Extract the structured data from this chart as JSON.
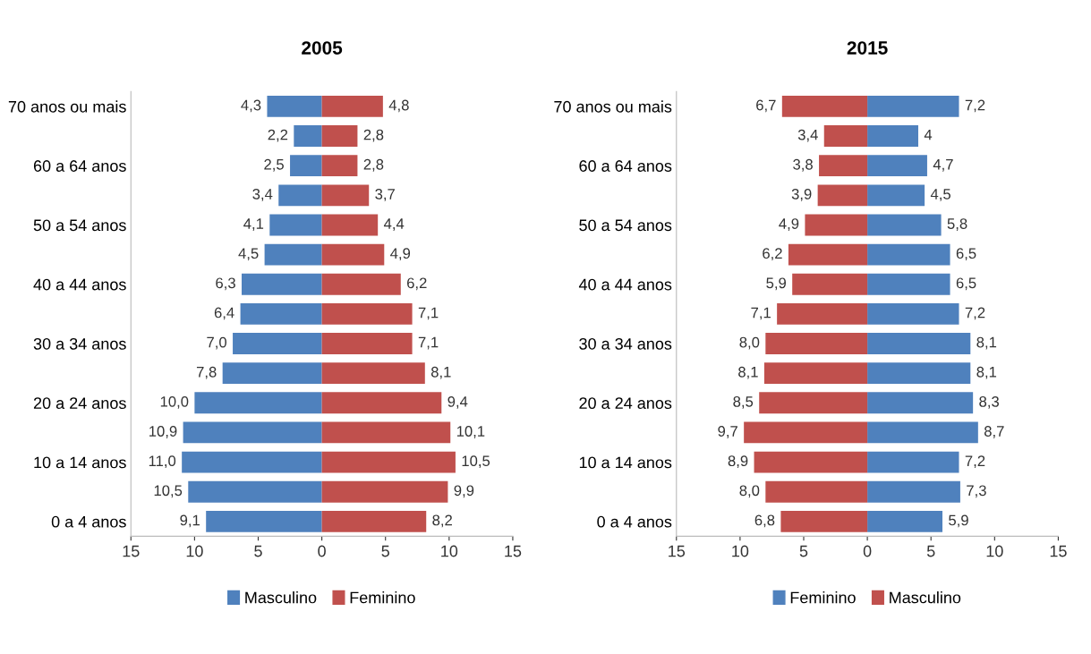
{
  "chart_data": [
    {
      "type": "bar",
      "title": "2005",
      "orientation": "horizontal",
      "categories": [
        "70 anos ou mais",
        null,
        "60 a 64 anos",
        null,
        "50 a 54 anos",
        null,
        "40 a 44 anos",
        null,
        "30 a 34 anos",
        null,
        "20 a 24 anos",
        null,
        "10 a 14 anos",
        null,
        "0 a 4 anos"
      ],
      "series": [
        {
          "name": "Masculino",
          "color": "#4f81bd",
          "values": [
            4.3,
            2.2,
            2.5,
            3.4,
            4.1,
            4.5,
            6.3,
            6.4,
            7.0,
            7.8,
            10.0,
            10.9,
            11.0,
            10.5,
            9.1
          ],
          "base": [
            -4.3,
            -2.2,
            -2.5,
            -3.4,
            -4.1,
            -4.5,
            -6.3,
            -6.4,
            -7.0,
            -7.8,
            -10.0,
            -10.9,
            -11.0,
            -10.5,
            -9.1
          ],
          "value_labels": [
            "4,3",
            "2,2",
            "2,5",
            "3,4",
            "4,1",
            "4,5",
            "6,3",
            "6,4",
            "7,0",
            "7,8",
            "10,0",
            "10,9",
            "11,0",
            "10,5",
            "9,1"
          ]
        },
        {
          "name": "Feminino",
          "color": "#c0504d",
          "values": [
            4.8,
            2.8,
            2.8,
            3.7,
            4.4,
            4.9,
            6.2,
            7.1,
            7.1,
            8.1,
            9.4,
            10.1,
            10.5,
            9.9,
            8.2
          ],
          "base": [
            0,
            0,
            0,
            0,
            0,
            0,
            0,
            0,
            0,
            0,
            0,
            0,
            0,
            0,
            0
          ],
          "value_labels": [
            "4,8",
            "2,8",
            "2,8",
            "3,7",
            "4,4",
            "4,9",
            "6,2",
            "7,1",
            "7,1",
            "8,1",
            "9,4",
            "10,1",
            "10,5",
            "9,9",
            "8,2"
          ]
        }
      ],
      "xlim": [
        -15,
        15
      ],
      "xticks": [
        {
          "value": -15,
          "label": "15"
        },
        {
          "value": -10,
          "label": "10"
        },
        {
          "value": -5,
          "label": "5"
        },
        0,
        5,
        10,
        15
      ],
      "grid": false,
      "legend": "bottom"
    },
    {
      "type": "bar",
      "title": "2015",
      "orientation": "horizontal",
      "categories": [
        "70 anos ou mais",
        null,
        "60 a 64 anos",
        null,
        "50 a 54 anos",
        null,
        "40 a 44 anos",
        null,
        "30 a 34 anos",
        null,
        "20 a 24 anos",
        null,
        "10 a 14 anos",
        null,
        "0 a 4 anos"
      ],
      "series": [
        {
          "name": "Feminino",
          "color": "#4f81bd",
          "values": [
            7.2,
            4,
            4.7,
            4.5,
            5.8,
            6.5,
            6.5,
            7.2,
            8.1,
            8.1,
            8.3,
            8.7,
            7.2,
            7.3,
            5.9
          ],
          "base": [
            0,
            0,
            0,
            0,
            0,
            0,
            0,
            0,
            0,
            0,
            0,
            0,
            0,
            0,
            0
          ],
          "value_labels": [
            "7,2",
            "4",
            "4,7",
            "4,5",
            "5,8",
            "6,5",
            "6,5",
            "7,2",
            "8,1",
            "8,1",
            "8,3",
            "8,7",
            "7,2",
            "7,3",
            "5,9"
          ]
        },
        {
          "name": "Masculino",
          "color": "#c0504d",
          "values": [
            6.7,
            3.4,
            3.8,
            3.9,
            4.9,
            6.2,
            5.9,
            7.1,
            8.0,
            8.1,
            8.5,
            9.7,
            8.9,
            8.0,
            6.8
          ],
          "base": [
            -6.7,
            -3.4,
            -3.8,
            -3.9,
            -4.9,
            -6.2,
            -5.9,
            -7.1,
            -8.0,
            -8.1,
            -8.5,
            -9.7,
            -8.9,
            -8.0,
            -6.8
          ],
          "value_labels": [
            "6,7",
            "3,4",
            "3,8",
            "3,9",
            "4,9",
            "6,2",
            "5,9",
            "7,1",
            "8,0",
            "8,1",
            "8,5",
            "9,7",
            "8,9",
            "8,0",
            "6,8"
          ]
        }
      ],
      "xlim": [
        -15,
        15
      ],
      "xticks": [
        {
          "value": -15,
          "label": "15"
        },
        {
          "value": -10,
          "label": "10"
        },
        {
          "value": -5,
          "label": "5"
        },
        0,
        5,
        10,
        15
      ],
      "grid": false,
      "legend": "bottom"
    }
  ]
}
